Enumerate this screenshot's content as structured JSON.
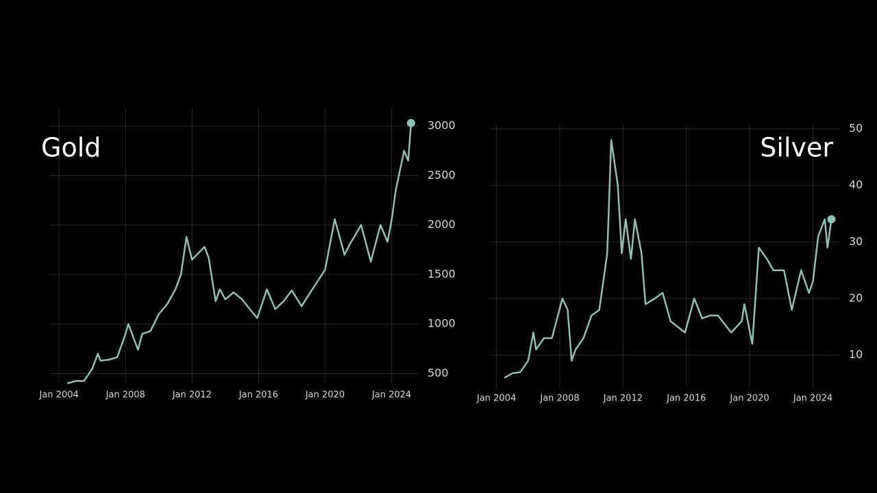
{
  "chart_data": [
    {
      "type": "line",
      "title": "Gold",
      "yaxis_side": "right",
      "grid": true,
      "last_marker": true,
      "xlim": [
        "2003-06",
        "2025-08"
      ],
      "ylim": [
        400,
        3180
      ],
      "xticks": [
        {
          "value": "2004-01",
          "label": "Jan 2004"
        },
        {
          "value": "2008-01",
          "label": "Jan 2008"
        },
        {
          "value": "2012-01",
          "label": "Jan 2012"
        },
        {
          "value": "2016-01",
          "label": "Jan 2016"
        },
        {
          "value": "2020-01",
          "label": "Jan 2020"
        },
        {
          "value": "2024-01",
          "label": "Jan 2024"
        }
      ],
      "yticks": [
        500,
        1000,
        1500,
        2000,
        2500,
        3000
      ],
      "x": [
        "2004-07",
        "2005-01",
        "2005-07",
        "2006-01",
        "2006-05",
        "2006-07",
        "2007-01",
        "2007-07",
        "2008-01",
        "2008-03",
        "2008-10",
        "2009-01",
        "2009-07",
        "2010-01",
        "2010-07",
        "2011-01",
        "2011-05",
        "2011-09",
        "2012-01",
        "2012-10",
        "2013-01",
        "2013-06",
        "2013-09",
        "2014-01",
        "2014-07",
        "2015-01",
        "2015-12",
        "2016-07",
        "2017-01",
        "2017-07",
        "2018-01",
        "2018-08",
        "2019-01",
        "2019-07",
        "2020-01",
        "2020-08",
        "2021-03",
        "2021-07",
        "2022-03",
        "2022-10",
        "2023-05",
        "2023-10",
        "2024-01",
        "2024-04",
        "2024-10",
        "2025-01",
        "2025-03"
      ],
      "series": [
        {
          "color": "#8fc1b5",
          "values": [
            400,
            425,
            425,
            550,
            700,
            630,
            640,
            665,
            900,
            1000,
            740,
            900,
            930,
            1100,
            1200,
            1350,
            1500,
            1880,
            1650,
            1780,
            1670,
            1230,
            1350,
            1250,
            1320,
            1250,
            1060,
            1350,
            1150,
            1230,
            1340,
            1180,
            1290,
            1420,
            1550,
            2060,
            1700,
            1810,
            2000,
            1630,
            2000,
            1830,
            2050,
            2350,
            2750,
            2650,
            3030
          ]
        }
      ]
    },
    {
      "type": "line",
      "title": "Silver",
      "yaxis_side": "right",
      "grid": true,
      "last_marker": true,
      "xlim": [
        "2003-08",
        "2025-09"
      ],
      "ylim": [
        4.4,
        50.6
      ],
      "xticks": [
        {
          "value": "2004-01",
          "label": "Jan 2004"
        },
        {
          "value": "2008-01",
          "label": "Jan 2008"
        },
        {
          "value": "2012-01",
          "label": "Jan 2012"
        },
        {
          "value": "2016-01",
          "label": "Jan 2016"
        },
        {
          "value": "2020-01",
          "label": "Jan 2020"
        },
        {
          "value": "2024-01",
          "label": "Jan 2024"
        }
      ],
      "yticks": [
        10,
        20,
        30,
        40,
        50
      ],
      "x": [
        "2004-07",
        "2005-01",
        "2005-07",
        "2006-01",
        "2006-05",
        "2006-07",
        "2007-01",
        "2007-07",
        "2008-03",
        "2008-07",
        "2008-10",
        "2009-01",
        "2009-07",
        "2010-01",
        "2010-07",
        "2011-01",
        "2011-04",
        "2011-09",
        "2011-12",
        "2012-03",
        "2012-07",
        "2012-10",
        "2013-03",
        "2013-06",
        "2014-01",
        "2014-07",
        "2015-01",
        "2015-12",
        "2016-07",
        "2017-01",
        "2017-07",
        "2018-01",
        "2018-11",
        "2019-07",
        "2019-09",
        "2020-03",
        "2020-08",
        "2021-02",
        "2021-07",
        "2022-03",
        "2022-09",
        "2023-04",
        "2023-10",
        "2024-01",
        "2024-05",
        "2024-10",
        "2024-12",
        "2025-03"
      ],
      "series": [
        {
          "color": "#8fc1b5",
          "values": [
            6,
            6.8,
            7,
            9,
            14,
            11,
            13,
            13,
            20,
            18,
            9,
            11,
            13,
            17,
            18,
            28,
            48,
            40,
            28,
            34,
            27,
            34,
            28,
            19,
            20,
            21,
            16,
            14,
            20,
            16.5,
            17,
            17,
            14,
            16,
            19,
            12,
            29,
            27,
            25,
            25,
            18,
            25,
            21,
            23,
            31,
            34,
            29,
            34
          ]
        }
      ]
    }
  ]
}
